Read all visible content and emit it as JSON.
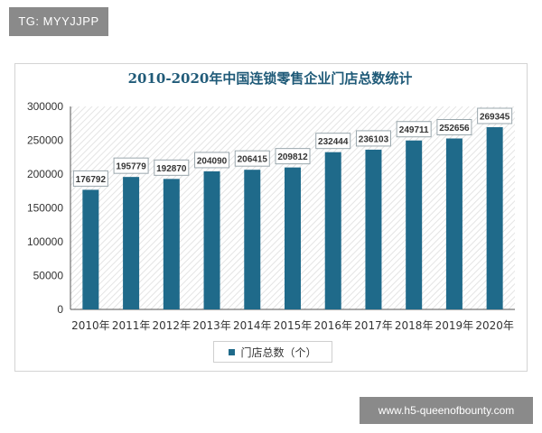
{
  "watermarks": {
    "top_left": "TG: MYYJJPP",
    "bottom_right": "www.h5-queenofbounty.com"
  },
  "colors": {
    "bar": "#1f6a8a",
    "hatch": "#e2e2e2",
    "axis": "#555555",
    "label_border": "#9aa7ad"
  },
  "chart_data": {
    "type": "bar",
    "title": "2010-2020年中国连锁零售企业门店总数统计",
    "categories": [
      "2010年",
      "2011年",
      "2012年",
      "2013年",
      "2014年",
      "2015年",
      "2016年",
      "2017年",
      "2018年",
      "2019年",
      "2020年"
    ],
    "series": [
      {
        "name": "门店总数（个）",
        "values": [
          176792,
          195779,
          192870,
          204090,
          206415,
          209812,
          232444,
          236103,
          249711,
          252656,
          269345
        ]
      }
    ],
    "ylim": [
      0,
      300000
    ],
    "yticks": [
      0,
      50000,
      100000,
      150000,
      200000,
      250000,
      300000
    ],
    "legend_position": "bottom",
    "data_labels": true
  }
}
